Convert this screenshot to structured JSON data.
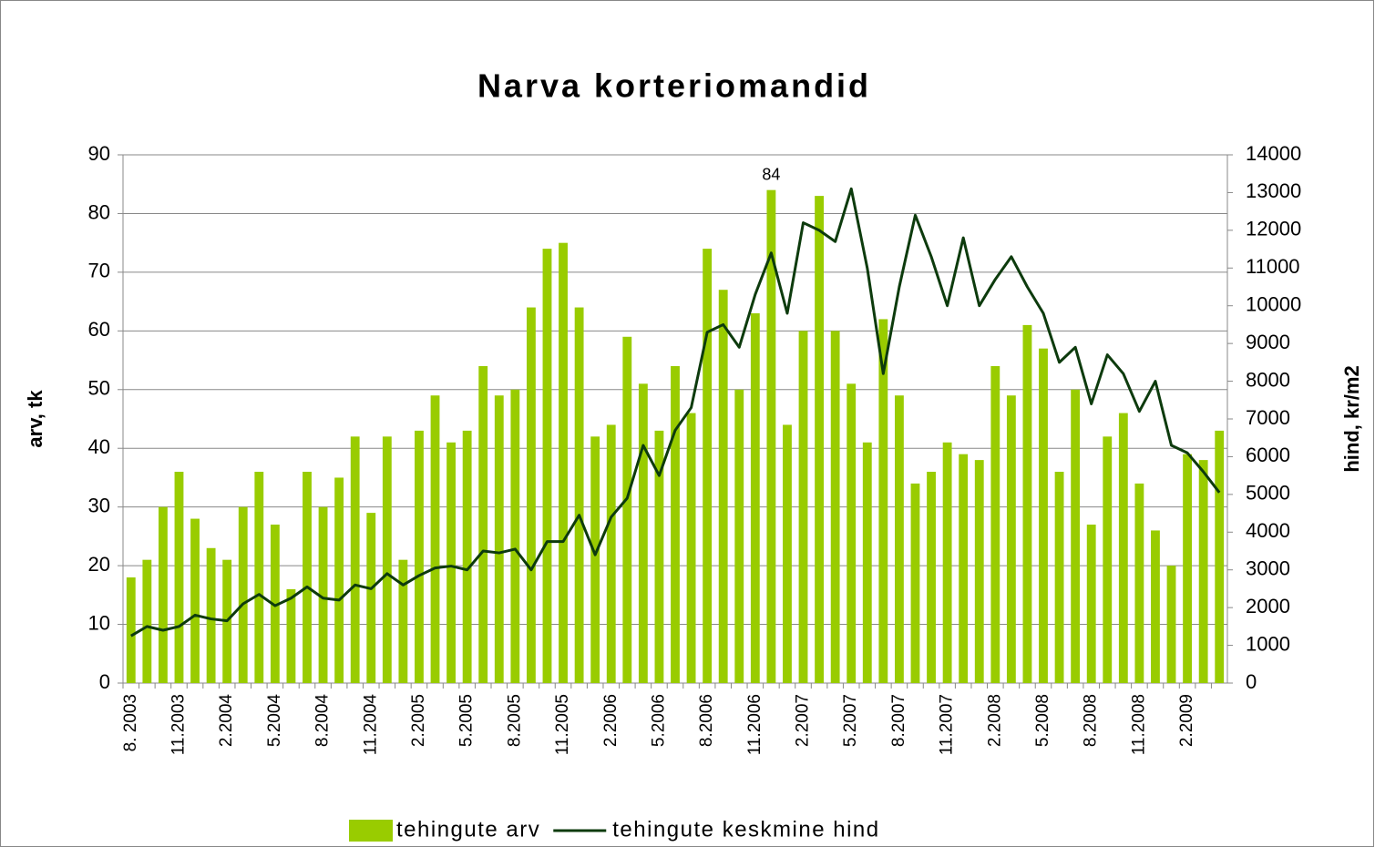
{
  "chart_data": {
    "type": "bar",
    "title": "Narva korteriomandid",
    "y_label": "arv, tk",
    "y2_label": "hind, kr/m2",
    "categories": [
      "8. 2003",
      null,
      null,
      "11.2003",
      null,
      null,
      "2.2004",
      null,
      null,
      "5.2004",
      null,
      null,
      "8.2004",
      null,
      null,
      "11.2004",
      null,
      null,
      "2.2005",
      null,
      null,
      "5.2005",
      null,
      null,
      "8.2005",
      null,
      null,
      "11.2005",
      null,
      null,
      "2.2006",
      null,
      null,
      "5.2006",
      null,
      null,
      "8.2006",
      null,
      null,
      "11.2006",
      null,
      null,
      "2.2007",
      null,
      null,
      "5.2007",
      null,
      null,
      "8.2007",
      null,
      null,
      "11.2007",
      null,
      null,
      "2.2008",
      null,
      null,
      "5.2008",
      null,
      null,
      "8.2008",
      null,
      null,
      "11.2008",
      null,
      null,
      "2.2009",
      null,
      null
    ],
    "series": [
      {
        "name": "tehingute arv",
        "type": "bar",
        "color": "#99cc00",
        "values": [
          18,
          21,
          30,
          36,
          28,
          23,
          21,
          30,
          36,
          27,
          16,
          36,
          30,
          35,
          42,
          29,
          42,
          21,
          43,
          49,
          41,
          43,
          54,
          49,
          50,
          64,
          74,
          75,
          64,
          42,
          44,
          59,
          51,
          43,
          54,
          46,
          74,
          67,
          50,
          63,
          84,
          44,
          60,
          83,
          60,
          51,
          41,
          62,
          49,
          34,
          36,
          41,
          39,
          38,
          54,
          49,
          61,
          57,
          36,
          50,
          27,
          42,
          46,
          34,
          26,
          20,
          39,
          38,
          43
        ],
        "value_labels": [
          null,
          null,
          null,
          null,
          null,
          null,
          null,
          null,
          null,
          null,
          null,
          null,
          null,
          null,
          null,
          null,
          null,
          null,
          null,
          null,
          null,
          null,
          null,
          null,
          null,
          null,
          null,
          null,
          null,
          null,
          null,
          null,
          null,
          null,
          null,
          null,
          null,
          null,
          null,
          null,
          "84",
          null,
          null,
          null,
          null,
          null,
          null,
          null,
          null,
          null,
          null,
          null,
          null,
          null,
          null,
          null,
          null,
          null,
          null,
          null,
          null,
          null,
          null,
          null,
          null,
          null,
          null,
          null,
          null
        ]
      },
      {
        "name": "tehingute keskmine hind",
        "type": "line",
        "color": "#0d3b0d",
        "axis": "y2",
        "values": [
          1250,
          1500,
          1400,
          1500,
          1800,
          1700,
          1650,
          2100,
          2350,
          2050,
          2250,
          2550,
          2250,
          2200,
          2600,
          2500,
          2900,
          2600,
          2850,
          3050,
          3100,
          3000,
          3500,
          3450,
          3550,
          3000,
          3750,
          3750,
          4450,
          3400,
          4400,
          4900,
          6300,
          5500,
          6700,
          7300,
          9300,
          9500,
          8900,
          10300,
          11400,
          9800,
          12200,
          12000,
          11700,
          13100,
          11000,
          8200,
          10500,
          12400,
          11300,
          10000,
          11800,
          10000,
          10700,
          11300,
          10500,
          9800,
          8500,
          8900,
          7400,
          8700,
          8200,
          7200,
          8000,
          6300,
          6100,
          5600,
          5050
        ]
      }
    ],
    "ylim": [
      0,
      90
    ],
    "yticks": [
      0,
      10,
      20,
      30,
      40,
      50,
      60,
      70,
      80,
      90
    ],
    "y2lim": [
      0,
      14000
    ],
    "y2ticks": [
      0,
      1000,
      2000,
      3000,
      4000,
      5000,
      6000,
      7000,
      8000,
      9000,
      10000,
      11000,
      12000,
      13000,
      14000
    ],
    "grid": true,
    "legend": "bottom"
  }
}
